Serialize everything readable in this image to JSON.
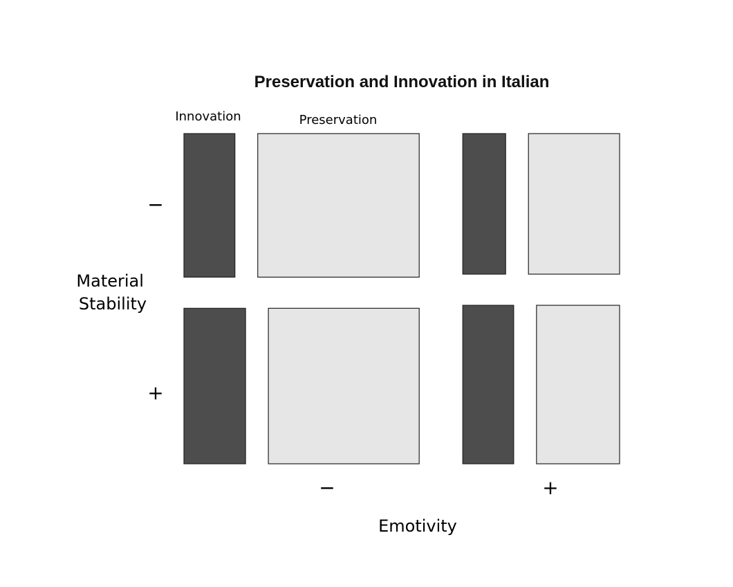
{
  "chart_data": {
    "type": "mosaic",
    "title": "Preservation and Innovation in Italian",
    "xlabel": "Emotivity",
    "ylabel": "Material Stability",
    "x_levels": [
      "−",
      "+"
    ],
    "y_levels": [
      "−",
      "+"
    ],
    "response_levels": [
      "Innovation",
      "Preservation"
    ],
    "colors": {
      "Innovation": "#4d4d4d",
      "Preservation": "#e6e6e6",
      "border": "#222222"
    },
    "cells": [
      {
        "emotivity": "−",
        "material_stability": "−",
        "innovation_share": 0.24,
        "preservation_share": 0.76,
        "group_share": 0.48
      },
      {
        "emotivity": "+",
        "material_stability": "−",
        "innovation_share": 0.32,
        "preservation_share": 0.68,
        "group_share": 0.47
      },
      {
        "emotivity": "−",
        "material_stability": "+",
        "innovation_share": 0.29,
        "preservation_share": 0.71,
        "group_share": 0.52
      },
      {
        "emotivity": "+",
        "material_stability": "+",
        "innovation_share": 0.38,
        "preservation_share": 0.62,
        "group_share": 0.53
      }
    ],
    "emotivity_share": {
      "−": 0.6,
      "+": 0.4
    }
  }
}
